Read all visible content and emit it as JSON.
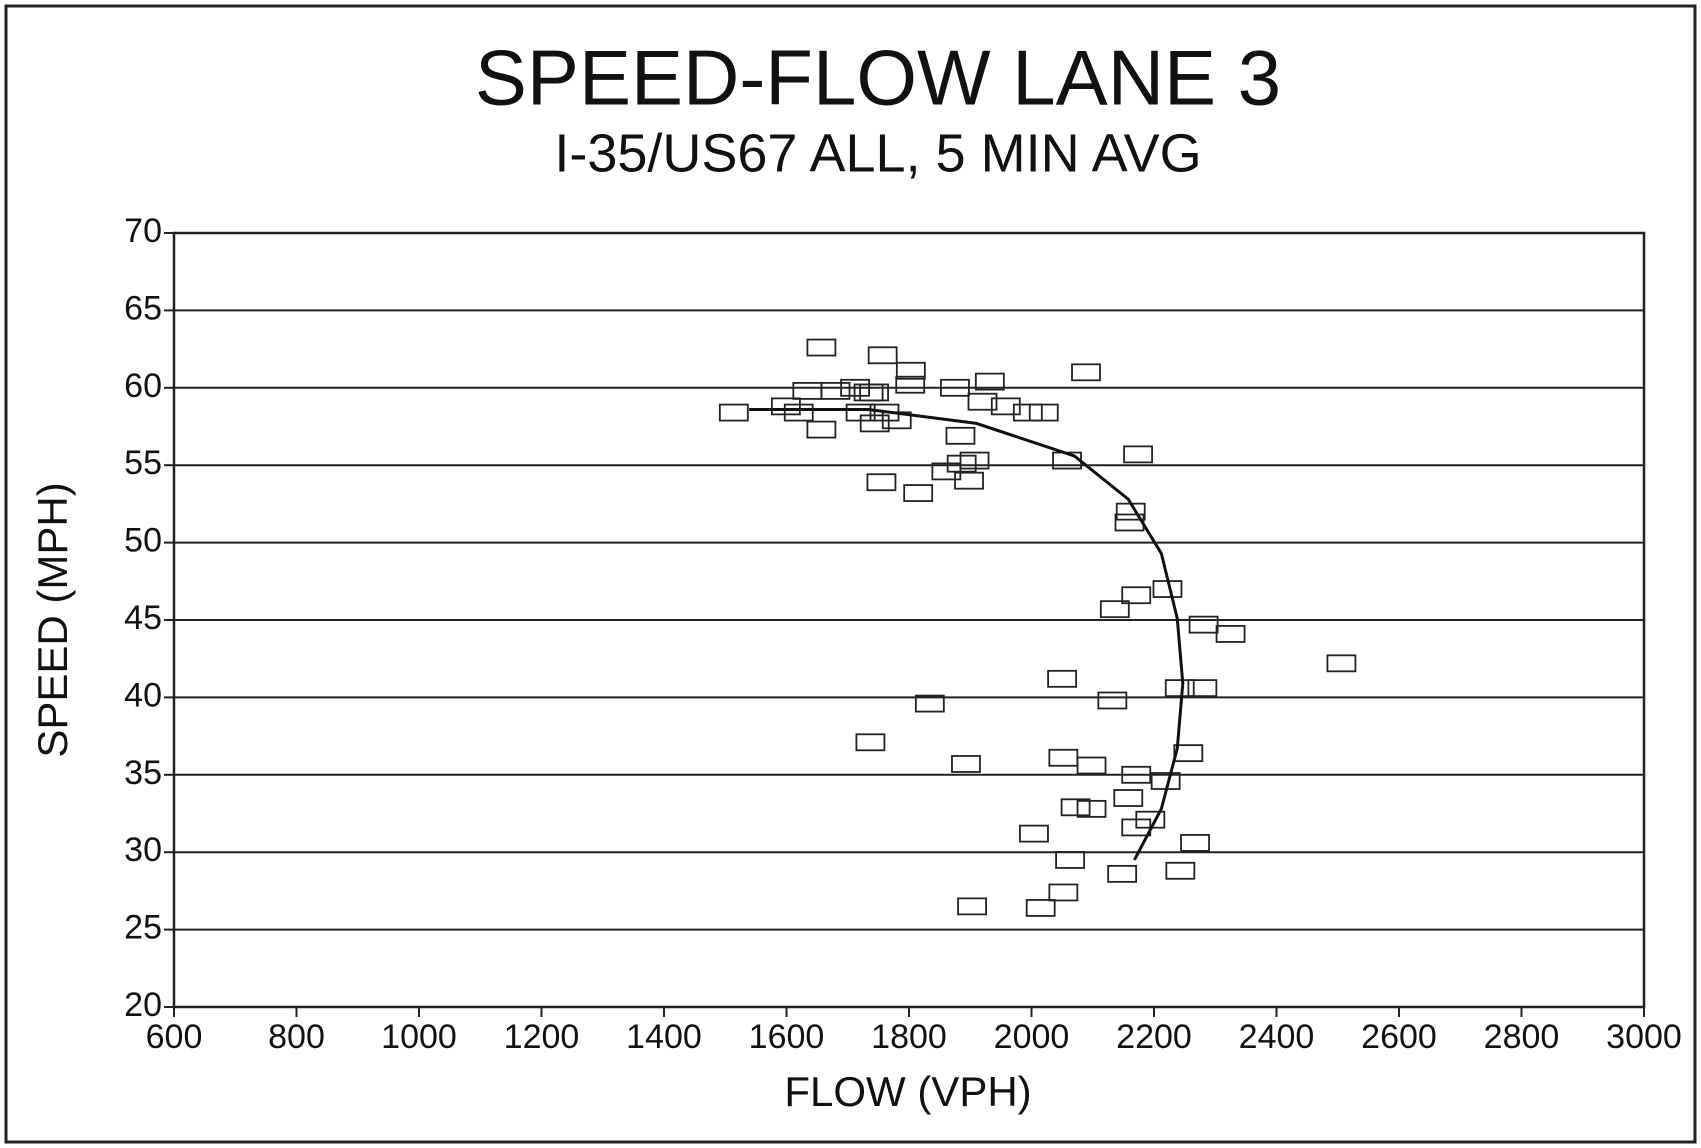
{
  "chart_data": {
    "type": "scatter",
    "title": "SPEED-FLOW LANE 3",
    "subtitle": "I-35/US67 ALL, 5 MIN AVG",
    "x_label": "FLOW (VPH)",
    "y_label": "SPEED (MPH)",
    "xlim": [
      600,
      3000
    ],
    "xticks": [
      600,
      800,
      1000,
      1200,
      1400,
      1600,
      1800,
      2000,
      2200,
      2400,
      2600,
      2800,
      3000
    ],
    "ylim": [
      20,
      70
    ],
    "yticks": [
      20,
      25,
      30,
      35,
      40,
      45,
      50,
      55,
      60,
      65,
      70
    ],
    "grid": true,
    "series": [
      {
        "type": "scatter",
        "marker": "square",
        "color": "#222222",
        "x": [
          1657,
          1757,
          1803,
          1802,
          2089,
          1875,
          1932,
          1920,
          1958,
          1994,
          2020,
          1514,
          1599,
          1620,
          1657,
          1634,
          1680,
          1712,
          1734,
          1743,
          1721,
          1744,
          1780,
          1760,
          1884,
          1861,
          1886,
          1907,
          1898,
          1755,
          1815,
          2058,
          2174,
          2162,
          2160,
          2222,
          2171,
          2136,
          2281,
          2325,
          2506,
          2050,
          2242,
          2279,
          2132,
          1834,
          1737,
          1893,
          2052,
          2098,
          2256,
          2171,
          2219,
          2158,
          2072,
          2098,
          2194,
          2171,
          2004,
          2267,
          2063,
          2148,
          2243,
          2052,
          2015,
          1903
        ],
        "values": [
          62.6,
          62.1,
          61.1,
          60.2,
          61.0,
          60.0,
          60.4,
          59.1,
          58.8,
          58.4,
          58.4,
          58.4,
          58.8,
          58.4,
          57.3,
          59.8,
          59.8,
          60.0,
          59.7,
          59.7,
          58.4,
          57.7,
          57.9,
          58.4,
          56.9,
          54.6,
          55.1,
          55.3,
          54.0,
          53.9,
          53.2,
          55.3,
          55.7,
          52.0,
          51.3,
          47.0,
          46.6,
          45.7,
          44.7,
          44.1,
          42.2,
          41.2,
          40.6,
          40.6,
          39.8,
          39.6,
          37.1,
          35.7,
          36.1,
          35.6,
          36.4,
          35.0,
          34.6,
          33.5,
          32.9,
          32.8,
          32.1,
          31.6,
          31.2,
          30.6,
          29.5,
          28.6,
          28.8,
          27.4,
          26.4,
          26.5
        ]
      },
      {
        "type": "line",
        "color": "#111111",
        "x": [
          1539,
          1734,
          1910,
          2070,
          2158,
          2212,
          2238,
          2247,
          2238,
          2212,
          2168
        ],
        "values": [
          58.6,
          58.6,
          57.7,
          55.6,
          52.8,
          49.3,
          45.1,
          40.9,
          36.7,
          32.8,
          29.5
        ]
      }
    ]
  }
}
